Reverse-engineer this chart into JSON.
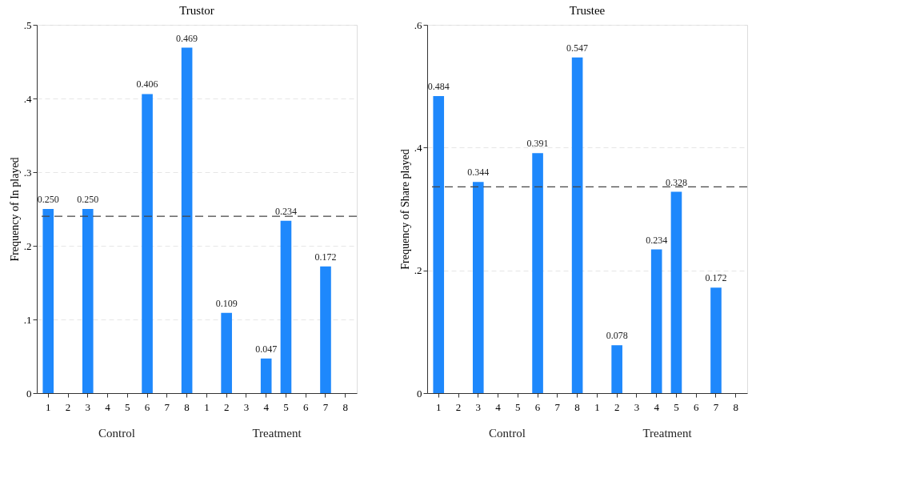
{
  "chart_data": [
    {
      "type": "bar",
      "title": "Trustor",
      "ylabel": "Frequency of In played",
      "categories": [
        "1",
        "2",
        "3",
        "4",
        "5",
        "6",
        "7",
        "8",
        "1",
        "2",
        "3",
        "4",
        "5",
        "6",
        "7",
        "8"
      ],
      "values": [
        0.25,
        null,
        0.25,
        null,
        null,
        0.406,
        null,
        0.469,
        null,
        0.109,
        null,
        0.047,
        0.234,
        null,
        0.172,
        null
      ],
      "value_labels": [
        "0.250",
        null,
        "0.250",
        null,
        null,
        "0.406",
        null,
        "0.469",
        null,
        "0.109",
        null,
        "0.047",
        "0.234",
        null,
        "0.172",
        null
      ],
      "color": "#1e88fc",
      "ylim": [
        0,
        0.5
      ],
      "yticks": [
        0,
        {
          "value": 0.1,
          "label": ".1"
        },
        {
          "value": 0.2,
          "label": ".2"
        },
        {
          "value": 0.3,
          "label": ".3"
        },
        {
          "value": 0.4,
          "label": ".4"
        },
        {
          "value": 0.5,
          "label": ".5"
        }
      ],
      "grid": "y",
      "ref_lines": [
        {
          "axis": "y",
          "value": 0.24,
          "color": "#444444",
          "line_style": "dashed"
        }
      ],
      "annotations": [
        "Control",
        "Treatment"
      ]
    },
    {
      "type": "bar",
      "title": "Trustee",
      "ylabel": "Frequency of Share played",
      "categories": [
        "1",
        "2",
        "3",
        "4",
        "5",
        "6",
        "7",
        "8",
        "1",
        "2",
        "3",
        "4",
        "5",
        "6",
        "7",
        "8"
      ],
      "values": [
        0.484,
        null,
        0.344,
        null,
        null,
        0.391,
        null,
        0.547,
        null,
        0.078,
        null,
        0.234,
        0.328,
        null,
        0.172,
        null
      ],
      "value_labels": [
        "0.484",
        null,
        "0.344",
        null,
        null,
        "0.391",
        null,
        "0.547",
        null,
        "0.078",
        null,
        "0.234",
        "0.328",
        null,
        "0.172",
        null
      ],
      "color": "#1e88fc",
      "ylim": [
        0,
        0.6
      ],
      "yticks": [
        0,
        {
          "value": 0.2,
          "label": ".2"
        },
        {
          "value": 0.4,
          "label": ".4"
        },
        {
          "value": 0.6,
          "label": ".6"
        }
      ],
      "grid": "y",
      "ref_lines": [
        {
          "axis": "y",
          "value": 0.336,
          "color": "#444444",
          "line_style": "dashed"
        }
      ],
      "annotations": [
        "Control",
        "Treatment"
      ]
    }
  ]
}
